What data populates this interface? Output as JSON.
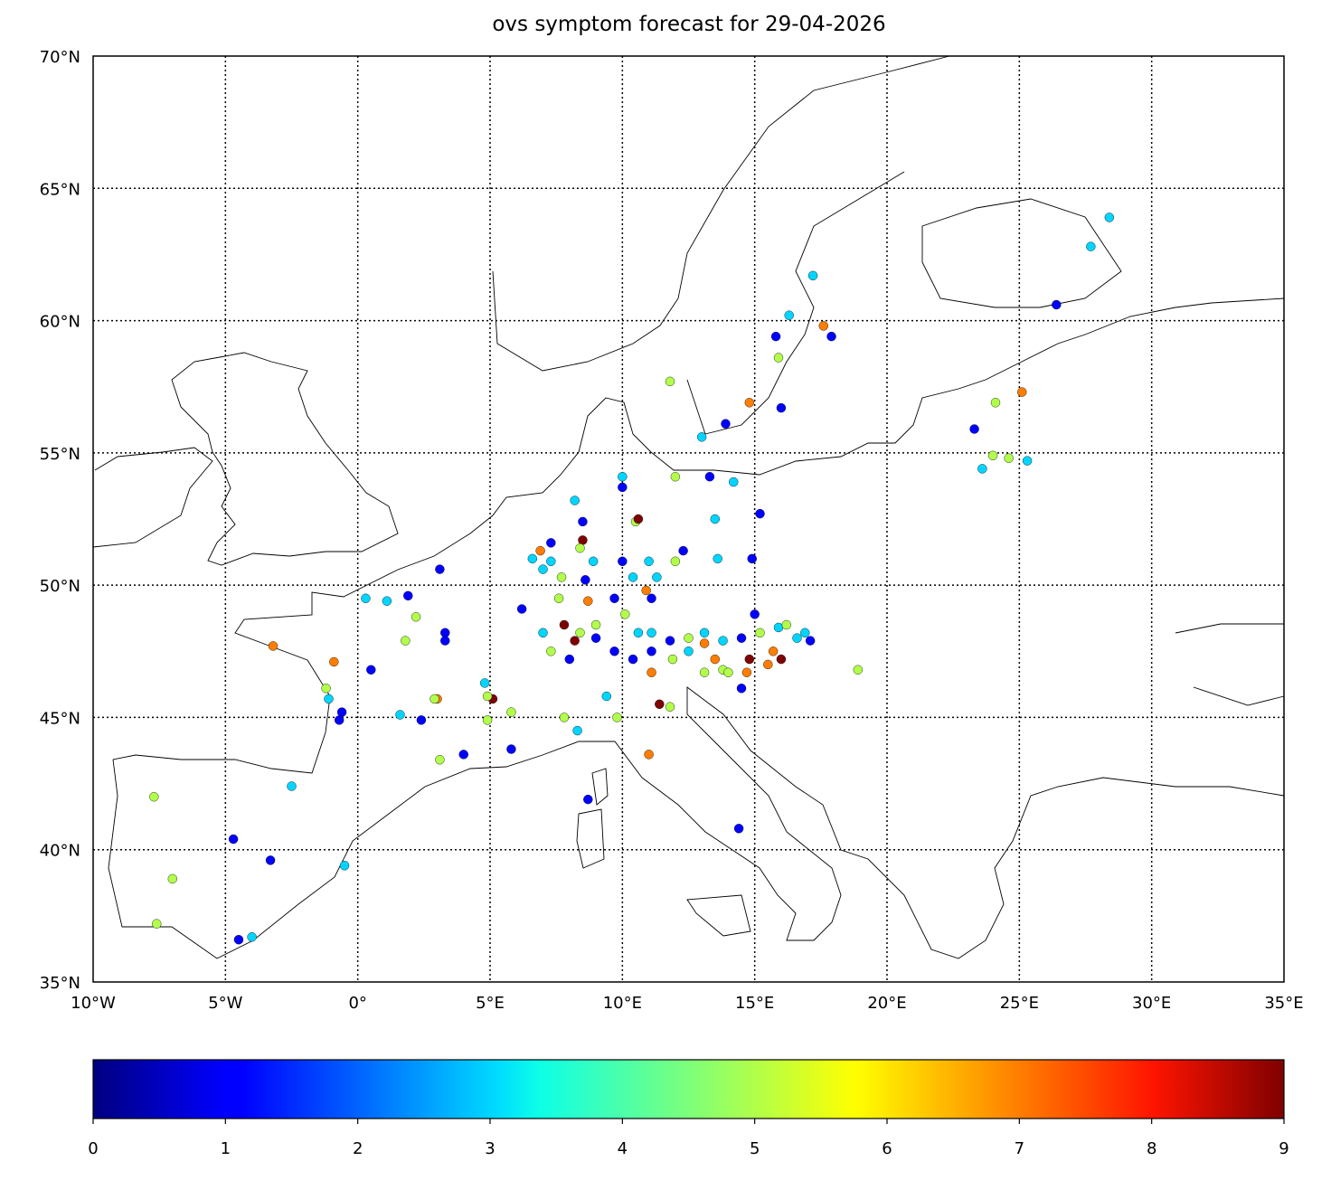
{
  "chart_data": {
    "type": "scatter",
    "title": "ovs symptom forecast for 29-04-2026",
    "projection": "equirectangular",
    "xlim": [
      -10,
      35
    ],
    "ylim": [
      35,
      70
    ],
    "grid": true,
    "x_ticks": [
      -10,
      -5,
      0,
      5,
      10,
      15,
      20,
      25,
      30,
      35
    ],
    "x_tick_labels": [
      "10°W",
      "5°W",
      "0°",
      "5°E",
      "10°E",
      "15°E",
      "20°E",
      "25°E",
      "30°E",
      "35°E"
    ],
    "y_ticks": [
      35,
      40,
      45,
      50,
      55,
      60,
      65,
      70
    ],
    "y_tick_labels": [
      "35°N",
      "40°N",
      "45°N",
      "50°N",
      "55°N",
      "60°N",
      "65°N",
      "70°N"
    ],
    "colormap": "jet",
    "colorbar": {
      "range": [
        0,
        9
      ],
      "ticks": [
        "0",
        "1",
        "2",
        "3",
        "4",
        "5",
        "6",
        "7",
        "8",
        "9"
      ],
      "placement": "bottom"
    },
    "points": [
      [
        28.4,
        63.9,
        3
      ],
      [
        27.7,
        62.8,
        3
      ],
      [
        26.4,
        60.6,
        1
      ],
      [
        17.2,
        61.7,
        3
      ],
      [
        16.3,
        60.2,
        3
      ],
      [
        15.8,
        59.4,
        1
      ],
      [
        17.6,
        59.8,
        7
      ],
      [
        17.9,
        59.4,
        1
      ],
      [
        15.9,
        58.6,
        5
      ],
      [
        16.0,
        56.7,
        1
      ],
      [
        14.8,
        56.9,
        7
      ],
      [
        13.9,
        56.1,
        1
      ],
      [
        13.0,
        55.6,
        3
      ],
      [
        11.8,
        57.7,
        5
      ],
      [
        25.1,
        57.3,
        7
      ],
      [
        24.1,
        56.9,
        5
      ],
      [
        23.3,
        55.9,
        1
      ],
      [
        24.0,
        54.9,
        5
      ],
      [
        24.6,
        54.8,
        5
      ],
      [
        25.3,
        54.7,
        3
      ],
      [
        23.6,
        54.4,
        3
      ],
      [
        10.0,
        54.1,
        3
      ],
      [
        10.0,
        53.7,
        1
      ],
      [
        12.0,
        54.1,
        5
      ],
      [
        13.3,
        54.1,
        1
      ],
      [
        14.2,
        53.9,
        3
      ],
      [
        15.2,
        52.7,
        1
      ],
      [
        13.5,
        52.5,
        3
      ],
      [
        10.5,
        52.4,
        5
      ],
      [
        10.6,
        52.5,
        9
      ],
      [
        8.5,
        52.4,
        1
      ],
      [
        8.2,
        53.2,
        3
      ],
      [
        7.3,
        51.6,
        1
      ],
      [
        8.5,
        51.7,
        9
      ],
      [
        6.9,
        51.3,
        7
      ],
      [
        6.6,
        51.0,
        3
      ],
      [
        8.4,
        51.4,
        5
      ],
      [
        10.0,
        50.9,
        1
      ],
      [
        11.0,
        50.9,
        3
      ],
      [
        12.0,
        50.9,
        5
      ],
      [
        12.3,
        51.3,
        1
      ],
      [
        13.6,
        51.0,
        3
      ],
      [
        14.9,
        51.0,
        1
      ],
      [
        8.7,
        49.4,
        7
      ],
      [
        8.6,
        50.2,
        1
      ],
      [
        9.7,
        49.5,
        1
      ],
      [
        11.1,
        49.5,
        1
      ],
      [
        10.9,
        49.8,
        7
      ],
      [
        7.6,
        49.5,
        5
      ],
      [
        6.2,
        49.1,
        1
      ],
      [
        5.1,
        45.7,
        9
      ],
      [
        4.8,
        46.3,
        3
      ],
      [
        4.9,
        45.8,
        5
      ],
      [
        3.1,
        50.6,
        1
      ],
      [
        0.3,
        49.5,
        3
      ],
      [
        1.1,
        49.4,
        3
      ],
      [
        1.9,
        49.6,
        1
      ],
      [
        2.2,
        48.8,
        5
      ],
      [
        3.3,
        48.2,
        1
      ],
      [
        3.3,
        47.9,
        1
      ],
      [
        1.8,
        47.9,
        5
      ],
      [
        -3.2,
        47.7,
        7
      ],
      [
        -0.9,
        47.1,
        7
      ],
      [
        0.5,
        46.8,
        1
      ],
      [
        -1.2,
        46.1,
        5
      ],
      [
        -1.1,
        45.7,
        3
      ],
      [
        -0.6,
        45.2,
        1
      ],
      [
        -0.7,
        44.9,
        1
      ],
      [
        1.6,
        45.1,
        3
      ],
      [
        2.4,
        44.9,
        1
      ],
      [
        3.0,
        45.7,
        7
      ],
      [
        2.9,
        45.7,
        5
      ],
      [
        3.1,
        43.4,
        5
      ],
      [
        4.0,
        43.6,
        1
      ],
      [
        5.8,
        43.8,
        1
      ],
      [
        5.8,
        45.2,
        5
      ],
      [
        4.9,
        44.9,
        5
      ],
      [
        7.8,
        45.0,
        5
      ],
      [
        8.3,
        44.5,
        3
      ],
      [
        9.4,
        45.8,
        3
      ],
      [
        9.8,
        45.0,
        5
      ],
      [
        11.0,
        43.6,
        7
      ],
      [
        8.7,
        41.9,
        1
      ],
      [
        14.4,
        40.8,
        1
      ],
      [
        -2.5,
        42.4,
        3
      ],
      [
        -7.7,
        42.0,
        5
      ],
      [
        -4.7,
        40.4,
        1
      ],
      [
        -3.3,
        39.6,
        1
      ],
      [
        -0.5,
        39.4,
        3
      ],
      [
        -7.0,
        38.9,
        5
      ],
      [
        -7.6,
        37.2,
        5
      ],
      [
        -4.5,
        36.6,
        1
      ],
      [
        -4.0,
        36.7,
        3
      ],
      [
        18.9,
        46.8,
        5
      ],
      [
        11.4,
        45.5,
        9
      ],
      [
        11.8,
        45.4,
        5
      ],
      [
        14.5,
        46.1,
        1
      ],
      [
        11.1,
        48.2,
        3
      ],
      [
        11.8,
        47.9,
        1
      ],
      [
        12.5,
        48.0,
        5
      ],
      [
        13.1,
        48.2,
        3
      ],
      [
        13.8,
        47.9,
        3
      ],
      [
        14.5,
        48.0,
        1
      ],
      [
        15.2,
        48.2,
        5
      ],
      [
        15.9,
        48.4,
        3
      ],
      [
        16.6,
        48.0,
        3
      ],
      [
        16.9,
        48.2,
        3
      ],
      [
        16.2,
        48.5,
        5
      ],
      [
        15.7,
        47.5,
        7
      ],
      [
        16.0,
        47.2,
        9
      ],
      [
        15.5,
        47.0,
        7
      ],
      [
        14.8,
        47.2,
        9
      ],
      [
        13.8,
        46.8,
        5
      ],
      [
        13.5,
        47.2,
        7
      ],
      [
        13.1,
        47.8,
        7
      ],
      [
        12.5,
        47.5,
        3
      ],
      [
        11.9,
        47.2,
        5
      ],
      [
        11.1,
        46.7,
        7
      ],
      [
        10.4,
        47.2,
        1
      ],
      [
        9.7,
        47.5,
        1
      ],
      [
        9.0,
        48.0,
        1
      ],
      [
        8.4,
        48.2,
        5
      ],
      [
        7.8,
        48.5,
        9
      ],
      [
        8.2,
        47.9,
        9
      ],
      [
        8.0,
        47.2,
        1
      ],
      [
        7.3,
        47.5,
        5
      ],
      [
        7.0,
        48.2,
        3
      ],
      [
        9.0,
        48.5,
        5
      ],
      [
        10.1,
        48.9,
        5
      ],
      [
        10.6,
        48.2,
        3
      ],
      [
        11.1,
        47.5,
        1
      ],
      [
        13.1,
        46.7,
        5
      ],
      [
        14.0,
        46.7,
        5
      ],
      [
        14.7,
        46.7,
        7
      ],
      [
        15.0,
        48.9,
        1
      ],
      [
        17.1,
        47.9,
        1
      ],
      [
        7.3,
        50.9,
        3
      ],
      [
        7.7,
        50.3,
        5
      ],
      [
        7.0,
        50.6,
        3
      ],
      [
        8.9,
        50.9,
        3
      ],
      [
        10.4,
        50.3,
        3
      ],
      [
        11.3,
        50.3,
        3
      ]
    ]
  }
}
